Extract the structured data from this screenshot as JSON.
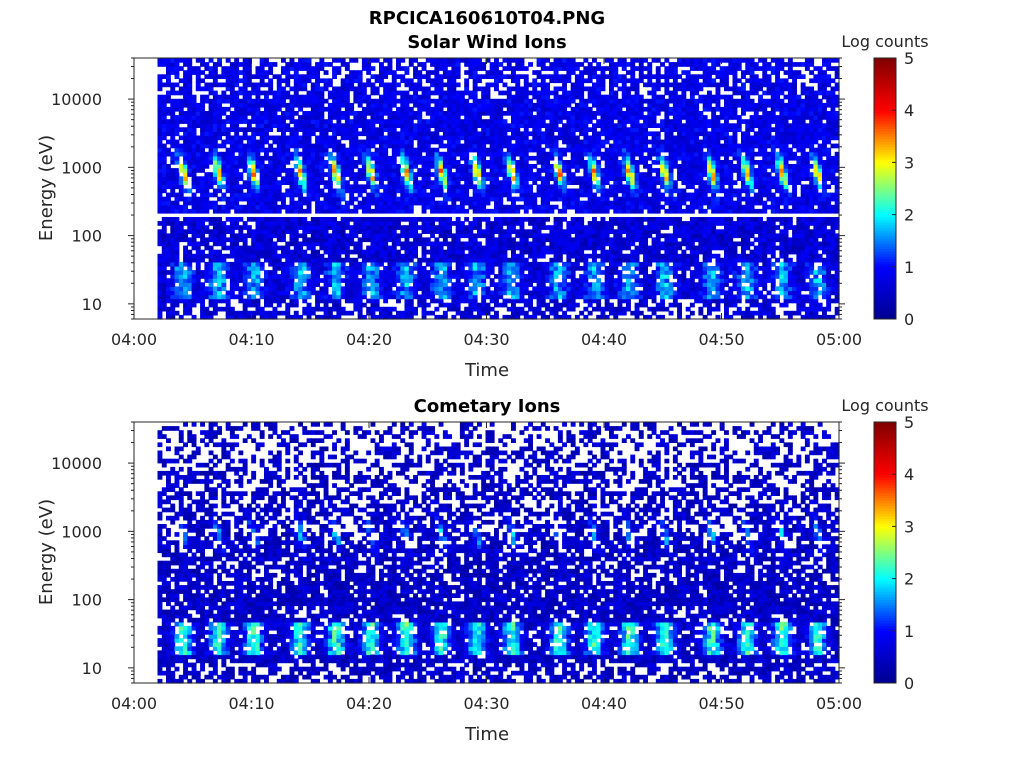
{
  "figure_title": "RPCICA160610T04.PNG",
  "chart_data": [
    {
      "type": "heatmap",
      "title": "Solar Wind Ions",
      "xlabel": "Time",
      "ylabel": "Energy (eV)",
      "x_ticks": [
        "04:00",
        "04:10",
        "04:20",
        "04:30",
        "04:40",
        "04:50",
        "05:00"
      ],
      "x_range": [
        "04:00",
        "05:00"
      ],
      "y_scale": "log",
      "y_ticks": [
        10,
        100,
        1000,
        10000
      ],
      "y_range": [
        6,
        40000
      ],
      "colorbar": {
        "label": "Log counts",
        "range": [
          0,
          5
        ],
        "ticks": [
          0,
          1,
          2,
          3,
          4,
          5
        ]
      },
      "colormap": [
        "#00008f",
        "#0000ff",
        "#00ffff",
        "#ffff00",
        "#ff0000",
        "#800000"
      ],
      "data_start": "04:02",
      "gap_energy_ev": 190,
      "peak_times": [
        "04:04",
        "04:07",
        "04:10",
        "04:14",
        "04:17",
        "04:20",
        "04:23",
        "04:26",
        "04:29",
        "04:32",
        "04:36",
        "04:39",
        "04:42",
        "04:45",
        "04:49",
        "04:52",
        "04:55",
        "04:58"
      ],
      "peak_energy_ev": 850,
      "peak_log_counts": 2.8,
      "low_energy_band_ev": [
        12,
        40
      ],
      "low_band_log_counts": 1.2
    },
    {
      "type": "heatmap",
      "title": "Cometary Ions",
      "xlabel": "Time",
      "ylabel": "Energy (eV)",
      "x_ticks": [
        "04:00",
        "04:10",
        "04:20",
        "04:30",
        "04:40",
        "04:50",
        "05:00"
      ],
      "x_range": [
        "04:00",
        "05:00"
      ],
      "y_scale": "log",
      "y_ticks": [
        10,
        100,
        1000,
        10000
      ],
      "y_range": [
        6,
        40000
      ],
      "colorbar": {
        "label": "Log counts",
        "range": [
          0,
          5
        ],
        "ticks": [
          0,
          1,
          2,
          3,
          4,
          5
        ]
      },
      "colormap": [
        "#00008f",
        "#0000ff",
        "#00ffff",
        "#ffff00",
        "#ff0000",
        "#800000"
      ],
      "data_start": "04:02",
      "peak_times": [
        "04:04",
        "04:07",
        "04:10",
        "04:14",
        "04:17",
        "04:20",
        "04:23",
        "04:26",
        "04:29",
        "04:32",
        "04:36",
        "04:39",
        "04:42",
        "04:45",
        "04:49",
        "04:52",
        "04:55",
        "04:58"
      ],
      "peak_energy_ev": 900,
      "peak_log_counts": 1.3,
      "low_energy_band_ev": [
        15,
        45
      ],
      "low_band_log_counts": 1.9
    }
  ]
}
